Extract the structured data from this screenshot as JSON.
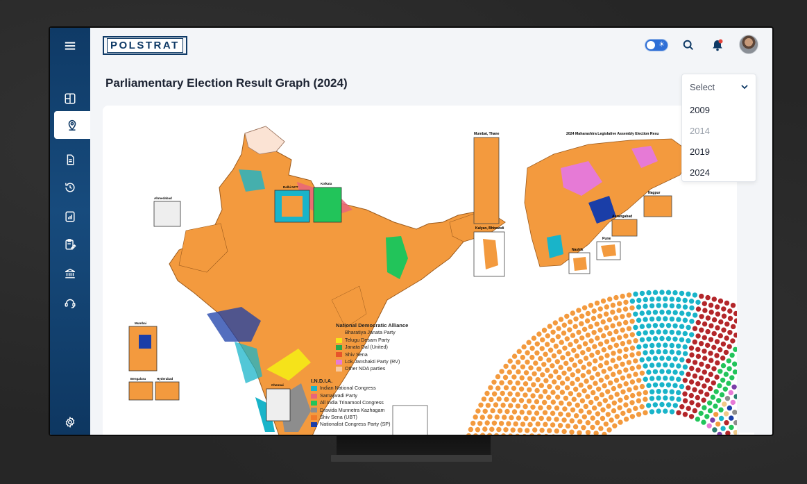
{
  "app": {
    "brand": "POLSTRAT"
  },
  "page": {
    "title": "Parliamentary Election Result Graph (2024)"
  },
  "year_select": {
    "placeholder": "Select",
    "options": [
      {
        "label": "2009",
        "disabled": false
      },
      {
        "label": "2014",
        "disabled": true
      },
      {
        "label": "2019",
        "disabled": false
      },
      {
        "label": "2024",
        "disabled": false
      }
    ]
  },
  "sidebar": {
    "items": [
      {
        "icon": "menu-icon"
      },
      {
        "icon": "dashboard-icon"
      },
      {
        "icon": "location-pin-icon",
        "active": true
      },
      {
        "icon": "document-icon"
      },
      {
        "icon": "history-icon"
      },
      {
        "icon": "report-icon"
      },
      {
        "icon": "clipboard-edit-icon"
      },
      {
        "icon": "institution-icon"
      },
      {
        "icon": "support-headset-icon"
      },
      {
        "icon": "settings-icon"
      }
    ]
  },
  "map_labels": {
    "delhi": "Delhi NCT",
    "kolkata": "Kolkata",
    "ahmedabad": "Ahmedabad",
    "mumbai": "Mumbai",
    "bengaluru": "Bengaluru",
    "hyderabad": "Hyderabad",
    "chennai": "Chennai"
  },
  "legend_nda": {
    "title": "National Democratic Alliance",
    "items": [
      {
        "label": "Bharatiya Janata Party",
        "color": "#f39a3e"
      },
      {
        "label": "Telugu Desam Party",
        "color": "#f5e31a"
      },
      {
        "label": "Janata Dal (United)",
        "color": "#2aa84a"
      },
      {
        "label": "Shiv Sena",
        "color": "#e8542a"
      },
      {
        "label": "Lok Janshakti Party (RV)",
        "color": "#e67ad6"
      },
      {
        "label": "Other NDA parties",
        "color": "#f7c9a0"
      }
    ]
  },
  "legend_india": {
    "title": "I.N.D.I.A.",
    "items": [
      {
        "label": "Indian National Congress",
        "color": "#19b4c9"
      },
      {
        "label": "Samajwadi Party",
        "color": "#e8657a"
      },
      {
        "label": "All India Trinamool Congress",
        "color": "#22c45a"
      },
      {
        "label": "Dravida Munnetra Kazhagam",
        "color": "#8d8d8d"
      },
      {
        "label": "Shiv Sena (UBT)",
        "color": "#f07a2a"
      },
      {
        "label": "Nationalist Congress Party (SP)",
        "color": "#1a3ea8"
      }
    ]
  },
  "maha_map": {
    "title": "2024 Maharashtra Legislative Assembly Election Resu",
    "insets": {
      "mumbai_thane": "Mumbai, Thane",
      "kalyan": "Kalyan, Bhiwandi",
      "nagpur": "Nagpur",
      "aurangabad": "Aurangabad",
      "pune": "Pune",
      "nashik": "Nashik"
    }
  },
  "colors": {
    "sidebar": "#0f3a66",
    "accent": "#2f6fd6",
    "bjp": "#f39a3e",
    "inc": "#19b4c9"
  }
}
